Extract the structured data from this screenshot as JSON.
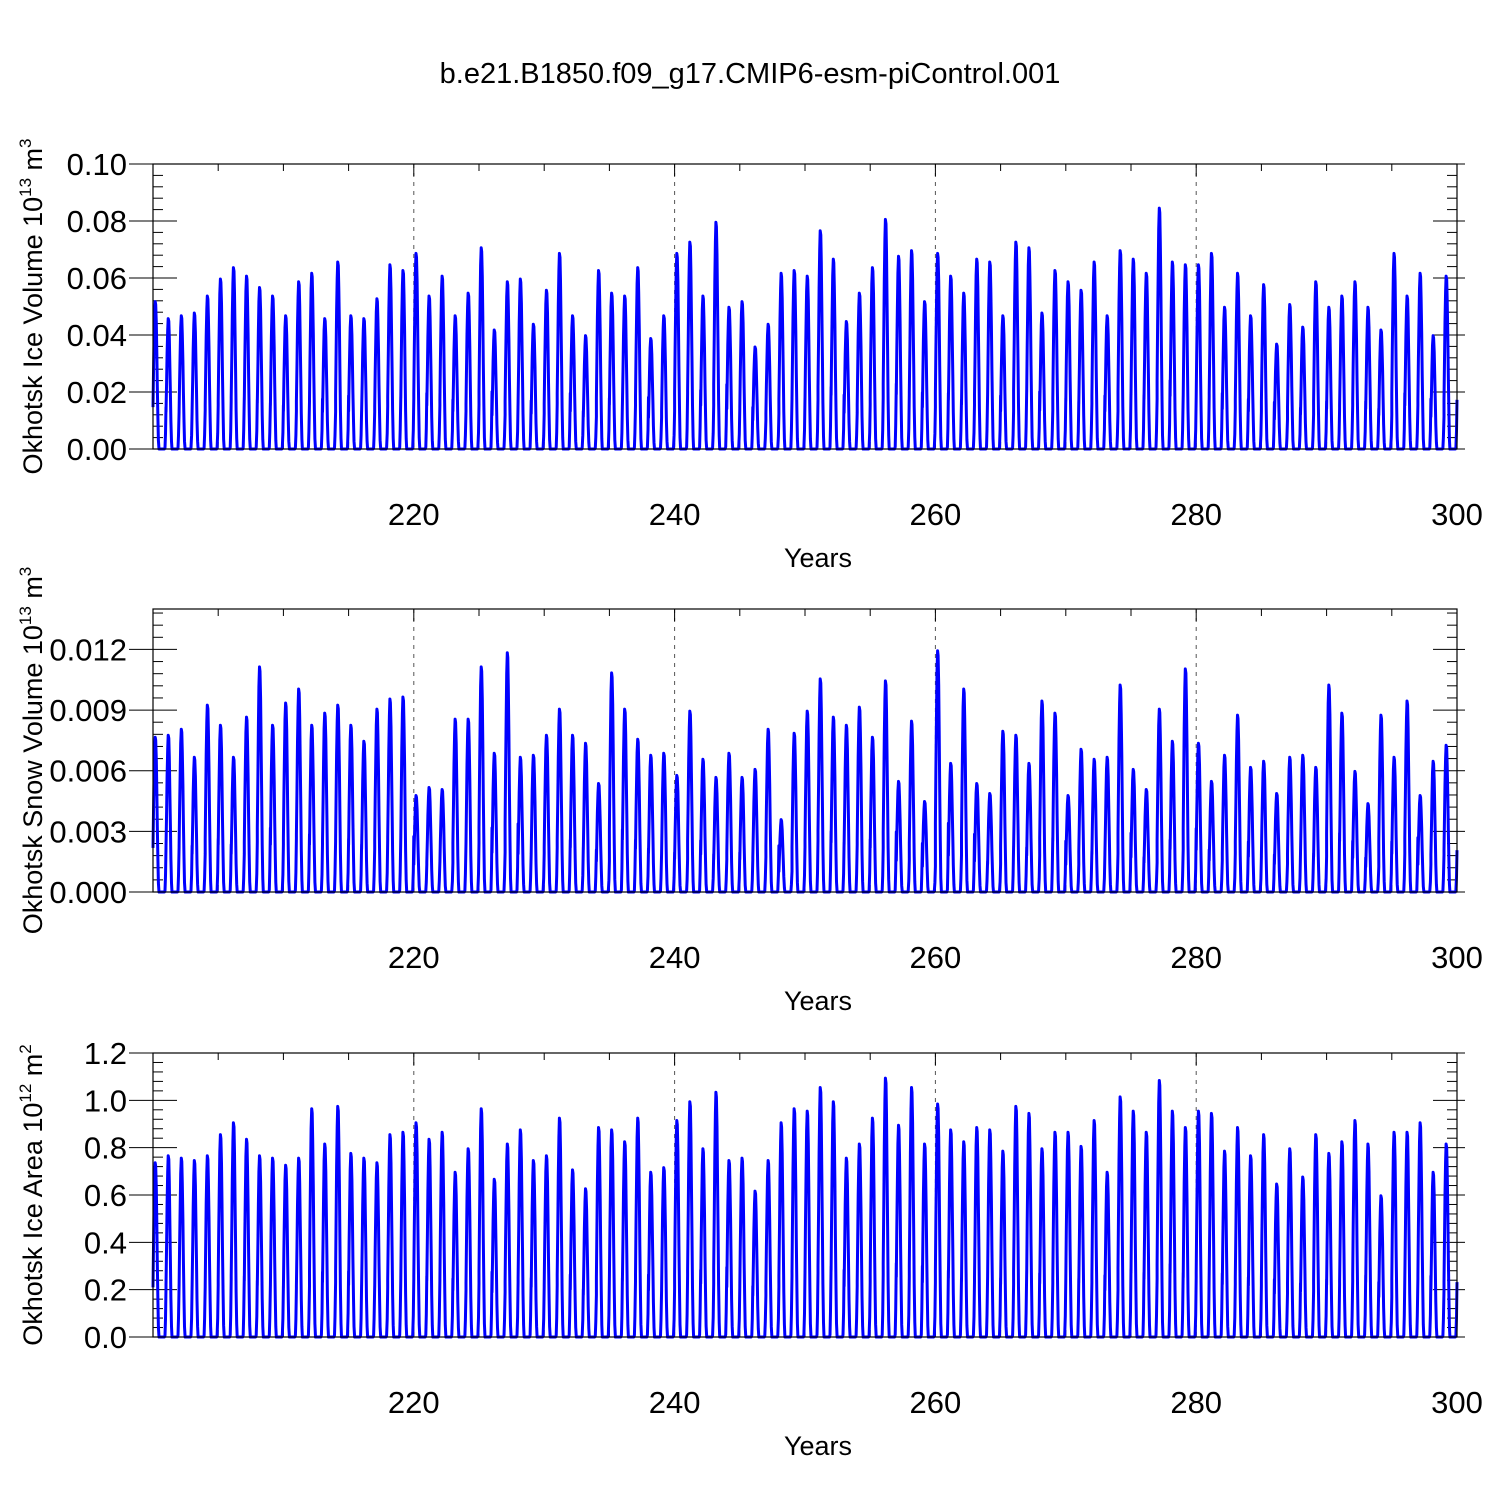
{
  "title": "b.e21.B1850.f09_g17.CMIP6-esm-piControl.001",
  "colors": {
    "series": "#0000ff",
    "axis": "#000000",
    "grid": "#000000"
  },
  "chart_data": [
    {
      "type": "line",
      "ylabel_main": "Okhotsk Ice Volume 10",
      "ylabel_exp": "13",
      "ylabel_unit": " m",
      "ylabel_unit_exp": "3",
      "xlabel": "Years",
      "xlim": [
        200,
        300
      ],
      "ylim": [
        0,
        0.1
      ],
      "yticks": [
        0.0,
        0.02,
        0.04,
        0.06,
        0.08,
        0.1
      ],
      "ytick_labels": [
        "0.00",
        "0.02",
        "0.04",
        "0.06",
        "0.08",
        "0.10"
      ],
      "xticks": [
        220,
        240,
        260,
        280,
        300
      ],
      "xtick_labels": [
        "220",
        "240",
        "260",
        "280",
        "300"
      ],
      "grid": "vertical dashed at major x ticks",
      "series": [
        {
          "name": "Okhotsk Ice Volume",
          "note": "annual maxima, years 201-299, minima near 0",
          "annual_max": [
            0.052,
            0.046,
            0.047,
            0.048,
            0.054,
            0.06,
            0.064,
            0.061,
            0.057,
            0.054,
            0.047,
            0.059,
            0.062,
            0.046,
            0.066,
            0.047,
            0.046,
            0.053,
            0.065,
            0.063,
            0.069,
            0.054,
            0.061,
            0.047,
            0.055,
            0.071,
            0.042,
            0.059,
            0.06,
            0.044,
            0.056,
            0.069,
            0.047,
            0.04,
            0.063,
            0.055,
            0.054,
            0.064,
            0.039,
            0.047,
            0.069,
            0.073,
            0.054,
            0.08,
            0.05,
            0.052,
            0.036,
            0.044,
            0.062,
            0.063,
            0.061,
            0.077,
            0.067,
            0.045,
            0.055,
            0.064,
            0.081,
            0.068,
            0.07,
            0.052,
            0.069,
            0.061,
            0.055,
            0.067,
            0.066,
            0.047,
            0.073,
            0.071,
            0.048,
            0.063,
            0.059,
            0.056,
            0.066,
            0.047,
            0.07,
            0.067,
            0.062,
            0.085,
            0.066,
            0.065,
            0.065,
            0.069,
            0.05,
            0.062,
            0.047,
            0.058,
            0.037,
            0.051,
            0.043,
            0.059,
            0.05,
            0.054,
            0.059,
            0.05,
            0.042,
            0.069,
            0.054,
            0.062,
            0.04,
            0.061
          ]
        }
      ]
    },
    {
      "type": "line",
      "ylabel_main": "Okhotsk Snow Volume 10",
      "ylabel_exp": "13",
      "ylabel_unit": " m",
      "ylabel_unit_exp": "3",
      "xlabel": "Years",
      "xlim": [
        200,
        300
      ],
      "ylim": [
        0,
        0.014
      ],
      "yticks": [
        0.0,
        0.003,
        0.006,
        0.009,
        0.012
      ],
      "ytick_labels": [
        "0.000",
        "0.003",
        "0.006",
        "0.009",
        "0.012"
      ],
      "xticks": [
        220,
        240,
        260,
        280,
        300
      ],
      "xtick_labels": [
        "220",
        "240",
        "260",
        "280",
        "300"
      ],
      "grid": "vertical dashed at major x ticks",
      "series": [
        {
          "name": "Okhotsk Snow Volume",
          "note": "annual maxima, years 201-299, minima near 0",
          "annual_max": [
            0.0077,
            0.0078,
            0.0081,
            0.0067,
            0.0093,
            0.0083,
            0.0067,
            0.0087,
            0.0112,
            0.0083,
            0.0094,
            0.0101,
            0.0083,
            0.0089,
            0.0093,
            0.0083,
            0.0075,
            0.0091,
            0.0096,
            0.0097,
            0.0048,
            0.0052,
            0.0051,
            0.0086,
            0.0086,
            0.0112,
            0.0069,
            0.0119,
            0.0067,
            0.0068,
            0.0078,
            0.0091,
            0.0078,
            0.0074,
            0.0054,
            0.0109,
            0.0091,
            0.0076,
            0.0068,
            0.0069,
            0.0058,
            0.009,
            0.0066,
            0.0057,
            0.0069,
            0.0057,
            0.0061,
            0.0081,
            0.0036,
            0.0079,
            0.009,
            0.0106,
            0.0087,
            0.0083,
            0.0092,
            0.0077,
            0.0105,
            0.0055,
            0.0085,
            0.0045,
            0.012,
            0.0064,
            0.0101,
            0.0054,
            0.0049,
            0.008,
            0.0078,
            0.0064,
            0.0095,
            0.0089,
            0.0048,
            0.0071,
            0.0066,
            0.0067,
            0.0103,
            0.0061,
            0.0051,
            0.0091,
            0.0075,
            0.0111,
            0.0074,
            0.0055,
            0.0068,
            0.0088,
            0.0062,
            0.0065,
            0.0049,
            0.0067,
            0.0068,
            0.0062,
            0.0103,
            0.0089,
            0.006,
            0.0044,
            0.0088,
            0.0067,
            0.0095,
            0.0048,
            0.0065,
            0.0073
          ]
        }
      ]
    },
    {
      "type": "line",
      "ylabel_main": "Okhotsk Ice Area 10",
      "ylabel_exp": "12",
      "ylabel_unit": " m",
      "ylabel_unit_exp": "2",
      "xlabel": "Years",
      "xlim": [
        200,
        300
      ],
      "ylim": [
        0,
        1.2
      ],
      "yticks": [
        0.0,
        0.2,
        0.4,
        0.6,
        0.8,
        1.0,
        1.2
      ],
      "ytick_labels": [
        "0.0",
        "0.2",
        "0.4",
        "0.6",
        "0.8",
        "1.0",
        "1.2"
      ],
      "xticks": [
        220,
        240,
        260,
        280,
        300
      ],
      "xtick_labels": [
        "220",
        "240",
        "260",
        "280",
        "300"
      ],
      "grid": "vertical dashed at major x ticks",
      "series": [
        {
          "name": "Okhotsk Ice Area",
          "note": "annual maxima, years 201-299, minima near 0",
          "annual_max": [
            0.74,
            0.77,
            0.76,
            0.75,
            0.77,
            0.86,
            0.91,
            0.84,
            0.77,
            0.76,
            0.73,
            0.76,
            0.97,
            0.82,
            0.98,
            0.78,
            0.76,
            0.74,
            0.86,
            0.87,
            0.91,
            0.84,
            0.87,
            0.7,
            0.8,
            0.97,
            0.67,
            0.82,
            0.88,
            0.75,
            0.77,
            0.93,
            0.71,
            0.63,
            0.89,
            0.88,
            0.83,
            0.93,
            0.7,
            0.72,
            0.92,
            1.0,
            0.8,
            1.04,
            0.75,
            0.76,
            0.62,
            0.75,
            0.91,
            0.97,
            0.96,
            1.06,
            1.0,
            0.76,
            0.82,
            0.93,
            1.1,
            0.9,
            1.06,
            0.82,
            0.99,
            0.88,
            0.83,
            0.89,
            0.88,
            0.79,
            0.98,
            0.95,
            0.8,
            0.87,
            0.87,
            0.81,
            0.92,
            0.7,
            1.02,
            0.96,
            0.87,
            1.09,
            0.96,
            0.89,
            0.96,
            0.95,
            0.79,
            0.89,
            0.77,
            0.86,
            0.65,
            0.8,
            0.68,
            0.86,
            0.78,
            0.83,
            0.92,
            0.82,
            0.6,
            0.87,
            0.87,
            0.91,
            0.7,
            0.82
          ]
        }
      ]
    }
  ]
}
